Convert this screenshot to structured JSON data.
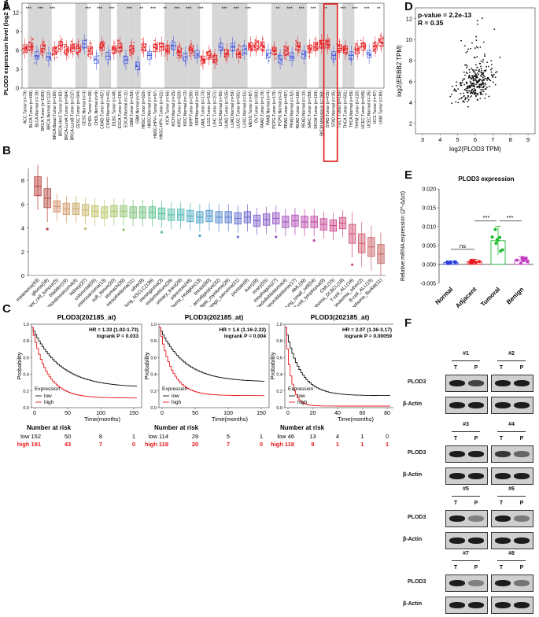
{
  "panels": {
    "A": {
      "letter": "A",
      "ylabel": "PLOD3 expression level (log2 TPM)",
      "yticks": [
        0,
        3,
        6,
        9,
        12
      ],
      "stars": [
        "***",
        "***",
        "***",
        "***",
        "***",
        "***",
        "***",
        "**",
        "***",
        "**",
        "***",
        "***",
        "***",
        "***",
        "***",
        "***",
        "**",
        "***",
        "***",
        "***",
        "**",
        "***",
        "***",
        "***",
        "**"
      ],
      "categories": [
        "ACC.Tumor (n=79)",
        "BLCA.Tumor (n=408)",
        "BLCA.Normal (n=19)",
        "BRCA.Tumor (n=1093)",
        "BRCA.Normal (n=112)",
        "BRCA-Basal.Tumor (n=190)",
        "BRCA-Her2.Tumor (n=82)",
        "BRCA-LumA.Tumor (n=564)",
        "BRCA-LumB.Tumor (n=217)",
        "CESC.Tumor (n=304)",
        "CESC.Normal (n=3)",
        "CHOL.Tumor (n=36)",
        "CHOL.Normal (n=9)",
        "COAD.Tumor (n=457)",
        "COAD.Normal (n=41)",
        "DLBC.Tumor (n=48)",
        "ESCA.Tumor (n=184)",
        "ESCA.Normal (n=11)",
        "GBM.Tumor (n=153)",
        "GBM.Normal (n=5)",
        "HNSC.Tumor (n=520)",
        "HNSC.Normal (n=44)",
        "HNSC-HPV+.Tumor (n=97)",
        "HNSC-HPV-.Tumor (n=421)",
        "KICH.Tumor (n=66)",
        "KICH.Normal (n=25)",
        "KIRC.Tumor (n=533)",
        "KIRC.Normal (n=72)",
        "KIRP.Tumor (n=290)",
        "KIRP.Normal (n=32)",
        "LAML.Tumor (n=173)",
        "LGG.Tumor (n=516)",
        "LIHC.Tumor (n=371)",
        "LIHC.Normal (n=50)",
        "LUAD.Tumor (n=515)",
        "LUAD.Normal (n=59)",
        "LUSC.Tumor (n=501)",
        "LUSC.Normal (n=51)",
        "MESO.Tumor (n=87)",
        "OV.Tumor (n=303)",
        "PAAD.Tumor (n=178)",
        "PAAD.Normal (n=4)",
        "PCPG.Tumor (n=179)",
        "PCPG.Normal (n=3)",
        "PRAD.Tumor (n=497)",
        "PRAD.Normal (n=52)",
        "READ.Tumor (n=166)",
        "READ.Normal (n=10)",
        "SARC.Tumor (n=259)",
        "SKCM.Tumor (n=103)",
        "SKCM.Metastasis (n=368)",
        "STAD.Tumor (n=415)",
        "STAD.Normal (n=35)",
        "TGCT.Tumor (n=150)",
        "THCA.Tumor (n=501)",
        "THCA.Normal (n=59)",
        "THYM.Tumor (n=120)",
        "UCEC.Tumor (n=545)",
        "UCEC.Normal (n=35)",
        "UCS.Tumor (n=57)",
        "UVM.Tumor (n=80)"
      ]
    },
    "B": {
      "letter": "B",
      "yticks": [
        0,
        2,
        4,
        6,
        8
      ],
      "categories": [
        "melanoma(63)",
        "glioma(56)",
        "giant_cell_tumour(5)",
        "bladder(19)",
        "chondrosarcoma(4)",
        "kidney(37)",
        "colorectal(55)",
        "osteosarcoma(13)",
        "soft_tissue(20)",
        "stomach(39)",
        "mesothelioma(11)",
        "other(8)",
        "lung_NSCLC(136)",
        "meningioma(3)",
        "endometrium(26)",
        "urinary_tract(29)",
        "pancreas(46)",
        "lymphoma_Hodgkin(13)",
        "breast(60)",
        "upper_aerodigestive(32)",
        "multiple_myeloma(26)",
        "Ewings_sarcoma(21)",
        "prostate(8)",
        "liver(28)",
        "ovary(55)",
        "esophagus(27)",
        "medulloblastoma(4)",
        "neuroblastoma(17)",
        "AML(39)",
        "lung_small_cell(54)",
        "T-cell_lymphoma(9)",
        "CML(15)",
        "B-cell_lymphoma_DLBCL(18)",
        "T-cell_ALL(16)",
        "leukemia_other(2)",
        "B-cell_ALL(15)",
        "lymphoma_Burkitt(11)"
      ],
      "medians": [
        7.5,
        6.5,
        5.8,
        5.6,
        5.6,
        5.5,
        5.4,
        5.3,
        5.4,
        5.4,
        5.3,
        5.3,
        5.3,
        5.2,
        5.1,
        5.1,
        5.0,
        4.9,
        5.0,
        4.9,
        4.9,
        4.8,
        4.9,
        4.6,
        4.7,
        4.8,
        4.5,
        4.6,
        4.5,
        4.5,
        4.3,
        4.2,
        4.4,
        3.5,
        2.7,
        2.4,
        1.8
      ]
    },
    "C": {
      "letter": "C",
      "plots": [
        {
          "title": "PLOD3(202185_at)",
          "hr": "HR = 1.33 (1.02-1.73)",
          "logrank": "logrank P = 0.033",
          "xticks": [
            "0",
            "50",
            "100",
            "150"
          ],
          "risk_low": [
            "low 152",
            "50",
            "8",
            "1"
          ],
          "risk_high": [
            "high 191",
            "43",
            "7",
            "0"
          ]
        },
        {
          "title": "PLOD3(202185_at)",
          "hr": "HR = 1.6 (1.16-2.22)",
          "logrank": "logrank P = 0.004",
          "xticks": [
            "0",
            "50",
            "100",
            "150"
          ],
          "risk_low": [
            "low 114",
            "29",
            "5",
            "1"
          ],
          "risk_high": [
            "high 118",
            "20",
            "7",
            "0"
          ]
        },
        {
          "title": "PLOD3(202185_at)",
          "hr": "HR = 2.07 (1.36-3.17)",
          "logrank": "logrank P = 0.00059",
          "xticks": [
            "0",
            "20",
            "40",
            "60",
            "80"
          ],
          "risk_low": [
            "low 46",
            "13",
            "4",
            "1",
            "0"
          ],
          "risk_high": [
            "high 118",
            "8",
            "1",
            "1",
            "1"
          ]
        }
      ],
      "ylabel": "Probability",
      "xlabel": "Time(months)",
      "legend_title": "Expression",
      "legend_low": "low",
      "legend_high": "high",
      "risk_title": "Number at risk",
      "yticks": [
        "0.0",
        "0.2",
        "0.4",
        "0.6",
        "0.8",
        "1.0"
      ]
    },
    "D": {
      "letter": "D",
      "pvalue": "p-value = 2.2e-13",
      "r": "R = 0.35",
      "xlabel": "log2(PLOD3 TPM)",
      "ylabel": "log2(ERBB2 TPM)",
      "xticks": [
        "3",
        "4",
        "5",
        "6",
        "7",
        "8",
        "9"
      ],
      "yticks": [
        "2",
        "4",
        "6",
        "8",
        "10",
        "12"
      ]
    },
    "E": {
      "letter": "E",
      "title": "PLOD3 expression",
      "ylabel": "Relative mRNA expression (2^-ΔΔct)",
      "yticks": [
        "0.020",
        "0.015",
        "0.010",
        "0.005",
        "0.000",
        "-0.005"
      ],
      "groups": [
        "Normal",
        "Adjacent",
        "Tumoral",
        "Benign"
      ],
      "ns": "ns",
      "sig1": "***",
      "sig2": "***"
    },
    "F": {
      "letter": "F",
      "protein": "PLOD3",
      "control": "β-Actin",
      "samples": [
        "#1",
        "#2",
        "#3",
        "#4",
        "#5",
        "#6",
        "#7",
        "#8"
      ],
      "lane_t": "T",
      "lane_p": "P"
    }
  },
  "chart_data": [
    {
      "type": "box",
      "panel": "A",
      "title": "",
      "ylabel": "PLOD3 expression level (log2 TPM)",
      "ylim": [
        0,
        13.5
      ],
      "medians": [
        6.3,
        6.6,
        5.2,
        6.3,
        5.0,
        5.9,
        6.8,
        6.0,
        6.4,
        6.3,
        7.0,
        6.0,
        4.5,
        6.6,
        5.1,
        6.1,
        6.5,
        4.5,
        6.2,
        3.5,
        6.5,
        5.2,
        6.4,
        6.6,
        6.0,
        6.7,
        5.8,
        5.0,
        6.1,
        5.4,
        4.5,
        5.2,
        4.6,
        6.5,
        5.5,
        6.5,
        5.5,
        6.1,
        6.6,
        6.7,
        6.7,
        5.5,
        5.9,
        4.6,
        5.9,
        5.0,
        6.6,
        5.3,
        6.2,
        6.6,
        7.0,
        7.0,
        5.2,
        6.3,
        6.1,
        5.2,
        6.1,
        6.6,
        5.4,
        6.6,
        7.3
      ]
    },
    {
      "type": "box",
      "panel": "B",
      "ylim": [
        0,
        9
      ],
      "xlabel": "",
      "ylabel": ""
    },
    {
      "type": "line",
      "panel": "C",
      "xlabel": "Time(months)",
      "ylabel": "Probability",
      "ylim": [
        0,
        1
      ]
    },
    {
      "type": "scatter",
      "panel": "D",
      "xlabel": "log2(PLOD3 TPM)",
      "ylabel": "log2(ERBB2 TPM)",
      "xlim": [
        2.6,
        9.4
      ],
      "ylim": [
        1,
        13
      ]
    },
    {
      "type": "bar",
      "panel": "E",
      "categories": [
        "Normal",
        "Adjacent",
        "Tumoral",
        "Benign"
      ],
      "values": [
        0.0005,
        0.0008,
        0.0063,
        0.0012
      ],
      "errors": [
        0.0004,
        0.0006,
        0.0038,
        0.0009
      ],
      "ylim": [
        -0.005,
        0.02
      ]
    }
  ]
}
